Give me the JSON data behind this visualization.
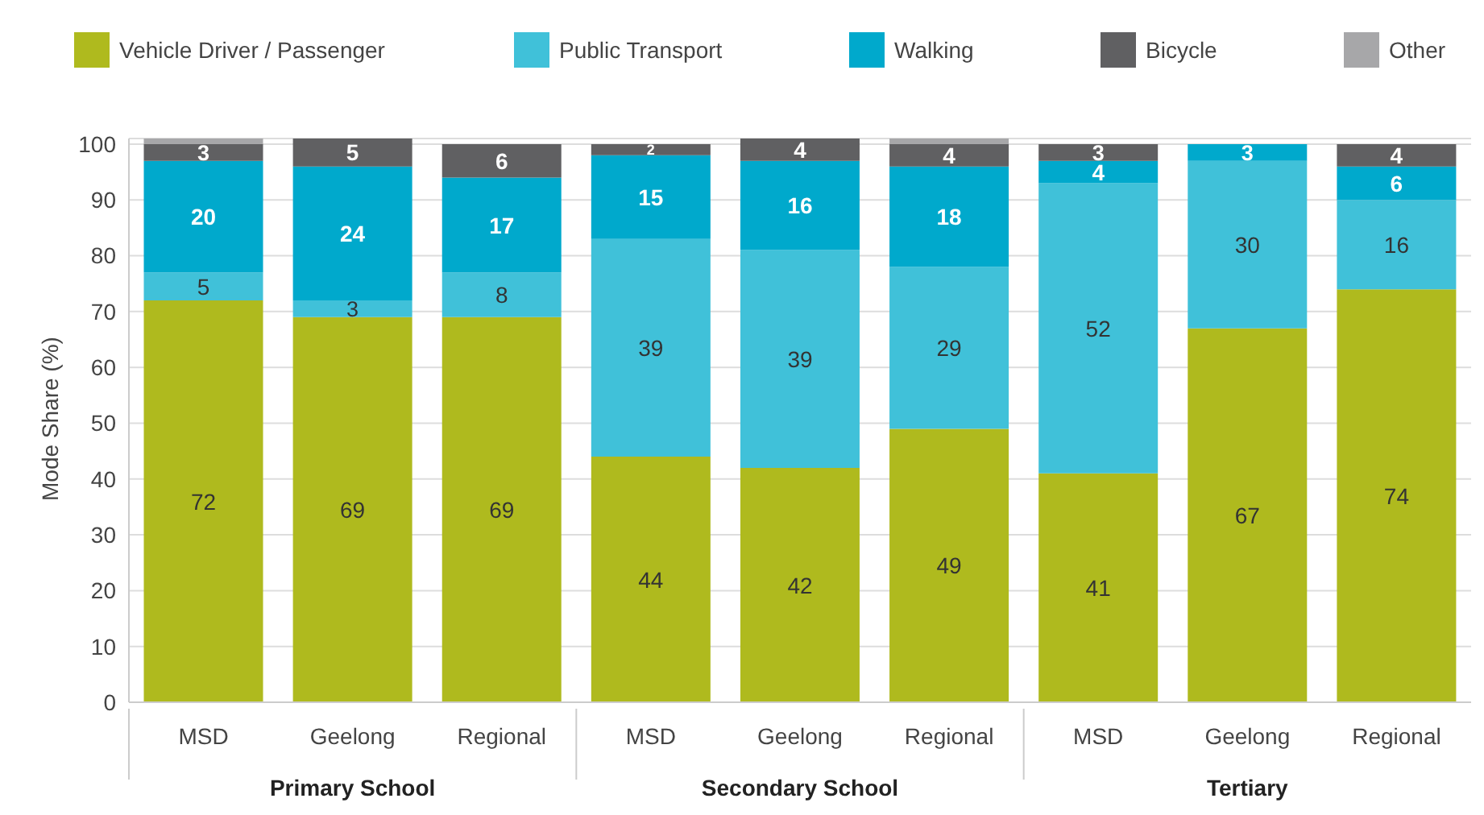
{
  "chart_data": {
    "type": "bar",
    "stacked": true,
    "ylabel": "Mode Share (%)",
    "categories": [
      "MSD",
      "Geelong",
      "Regional",
      "MSD",
      "Geelong",
      "Regional",
      "MSD",
      "Geelong",
      "Regional"
    ],
    "annotations": [
      "Primary School",
      "Secondary School",
      "Tertiary"
    ],
    "series": [
      {
        "name": "Vehicle Driver / Passenger",
        "color": "#afba1e",
        "values": [
          72,
          69,
          69,
          44,
          42,
          49,
          41,
          67,
          74
        ],
        "value_labels": [
          "72",
          "69",
          "69",
          "44",
          "42",
          "49",
          "41",
          "67",
          "74"
        ]
      },
      {
        "name": "Public Transport",
        "color": "#40c1d9",
        "values": [
          5,
          3,
          8,
          39,
          39,
          29,
          52,
          30,
          16
        ],
        "value_labels": [
          "5",
          "3",
          "8",
          "39",
          "39",
          "29",
          "52",
          "30",
          "16"
        ]
      },
      {
        "name": "Walking",
        "color": "#00a9cc",
        "values": [
          20,
          24,
          17,
          15,
          16,
          18,
          4,
          3,
          6
        ],
        "value_labels": [
          "20",
          "24",
          "17",
          "15",
          "16",
          "18",
          "4",
          "3",
          "6"
        ]
      },
      {
        "name": "Bicycle",
        "color": "#606062",
        "values": [
          3,
          5,
          6,
          2,
          4,
          4,
          3,
          0,
          4
        ],
        "value_labels": [
          "3",
          "5",
          "6",
          "2",
          "4",
          "4",
          "3",
          null,
          "4"
        ]
      },
      {
        "name": "Other",
        "color": "#a7a7a9",
        "values": [
          1,
          0,
          0,
          0,
          0,
          1,
          0,
          0,
          0
        ]
      }
    ],
    "ylim": [
      0,
      101
    ],
    "yticks": [
      0,
      10,
      20,
      30,
      40,
      50,
      60,
      70,
      80,
      90,
      100
    ],
    "grid": "y",
    "legend": "top left"
  }
}
